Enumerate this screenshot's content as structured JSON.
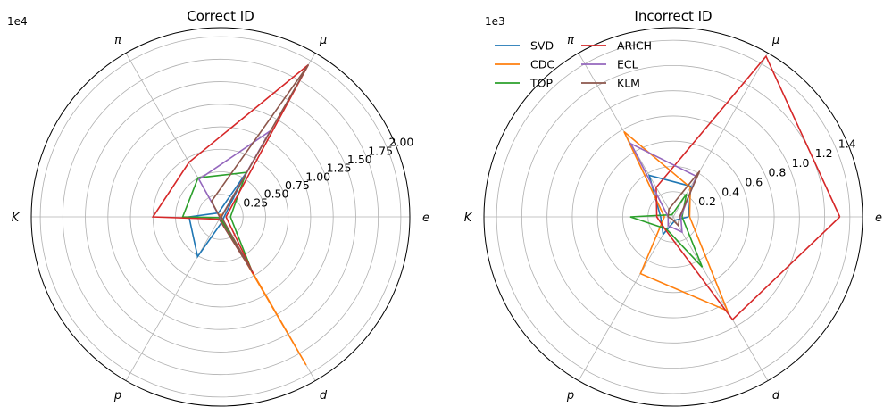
{
  "chart_data": [
    {
      "type": "radar",
      "title": "Correct ID",
      "scale_label": "1e4",
      "categories": [
        "e",
        "μ",
        "π",
        "K",
        "p",
        "d"
      ],
      "axis_categories": [
        "e",
        "μ",
        "π",
        "K",
        "p",
        "d"
      ],
      "rlim": [
        0,
        2.1
      ],
      "rticks": [
        0.25,
        0.5,
        0.75,
        1.0,
        1.25,
        1.5,
        1.75,
        2.0
      ],
      "rtick_labels": [
        "0.25",
        "0.50",
        "0.75",
        "1.00",
        "1.25",
        "1.50",
        "1.75",
        "2.00"
      ],
      "grid": true,
      "series": [
        {
          "name": "SVD",
          "values": [
            0.04,
            0.55,
            0.05,
            0.35,
            0.51,
            0.05
          ]
        },
        {
          "name": "CDC",
          "values": [
            0.0,
            0.03,
            0.03,
            0.0,
            0.01,
            1.9
          ]
        },
        {
          "name": "TOP",
          "values": [
            0.11,
            0.57,
            0.5,
            0.42,
            0.01,
            0.7
          ]
        },
        {
          "name": "ARICH",
          "values": [
            0.06,
            1.95,
            0.7,
            0.75,
            0.03,
            0.73
          ]
        },
        {
          "name": "ECL",
          "values": [
            0.01,
            1.1,
            0.48,
            0.01,
            0.02,
            0.02
          ]
        },
        {
          "name": "KLM",
          "values": [
            0.01,
            1.95,
            0.2,
            0.01,
            0.03,
            0.7
          ]
        }
      ]
    },
    {
      "type": "radar",
      "title": "Incorrect ID",
      "scale_label": "1e3",
      "categories": [
        "e",
        "μ",
        "π",
        "K",
        "p",
        "d"
      ],
      "axis_categories": [
        "e",
        "μ",
        "π",
        "K",
        "p",
        "d"
      ],
      "rlim": [
        0,
        1.5
      ],
      "rticks": [
        0.2,
        0.4,
        0.6,
        0.8,
        1.0,
        1.2,
        1.4
      ],
      "rtick_labels": [
        "0.2",
        "0.4",
        "0.6",
        "0.8",
        "1.0",
        "1.2",
        "1.4"
      ],
      "grid": true,
      "legend_position": "top-left",
      "series": [
        {
          "name": "SVD",
          "values": [
            0.12,
            0.28,
            0.38,
            0.1,
            0.16,
            0.03
          ]
        },
        {
          "name": "CDC",
          "values": [
            0.13,
            0.27,
            0.78,
            0.07,
            0.52,
            0.86
          ]
        },
        {
          "name": "TOP",
          "values": [
            0.07,
            0.21,
            0.02,
            0.34,
            0.11,
            0.46
          ]
        },
        {
          "name": "ARICH",
          "values": [
            1.32,
            1.47,
            0.27,
            0.13,
            0.12,
            0.94
          ]
        },
        {
          "name": "ECL",
          "values": [
            0.06,
            0.37,
            0.67,
            0.04,
            0.08,
            0.14
          ]
        },
        {
          "name": "KLM",
          "values": [
            0.05,
            0.42,
            0.07,
            0.04,
            0.02,
            0.08
          ]
        }
      ]
    }
  ],
  "legend": {
    "entries": [
      {
        "name": "SVD",
        "color": "#1f77b4"
      },
      {
        "name": "CDC",
        "color": "#ff7f0e"
      },
      {
        "name": "TOP",
        "color": "#2ca02c"
      },
      {
        "name": "ARICH",
        "color": "#d62728"
      },
      {
        "name": "ECL",
        "color": "#9467bd"
      },
      {
        "name": "KLM",
        "color": "#8c564b"
      }
    ]
  }
}
